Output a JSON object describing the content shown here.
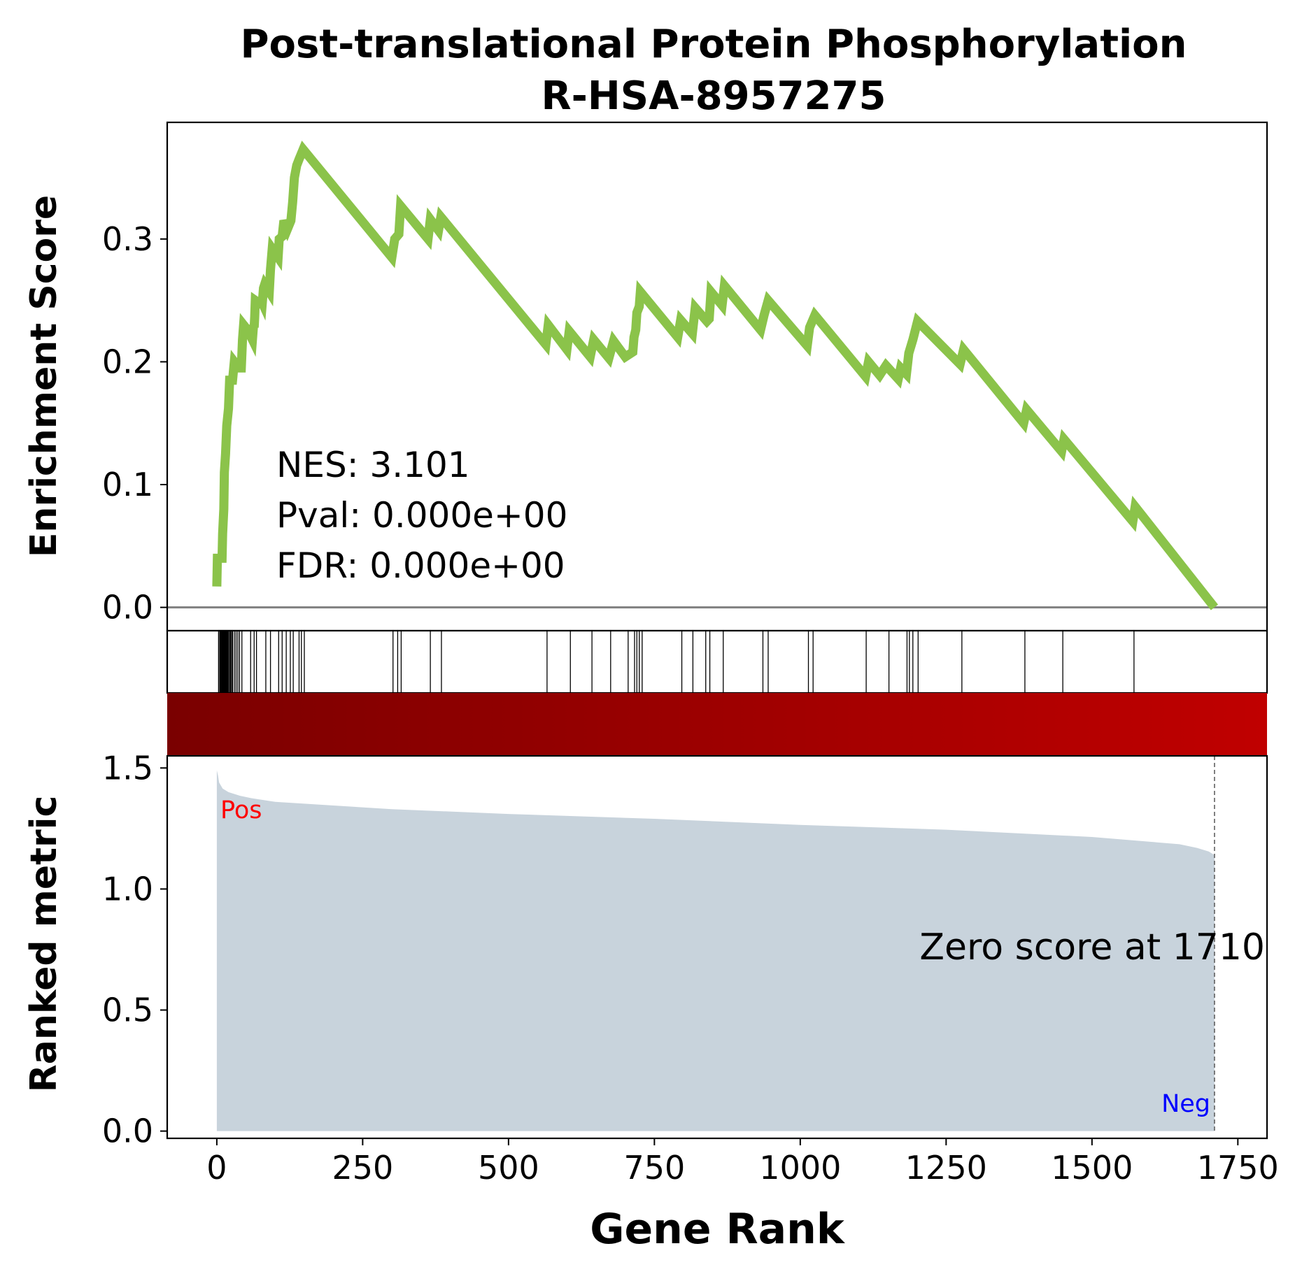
{
  "chart_data": {
    "type": "line",
    "title_line1": "Post-translational Protein Phosphorylation",
    "title_line2": "R-HSA-8957275",
    "xlabel": "Gene Rank",
    "xlim": [
      -85,
      1800
    ],
    "x_ticks": [
      0,
      250,
      500,
      750,
      1000,
      1250,
      1500,
      1750
    ],
    "x_tick_labels": [
      "0",
      "250",
      "500",
      "750",
      "1000",
      "1250",
      "1500",
      "1750"
    ],
    "es_panel": {
      "ylabel": "Enrichment Score",
      "ylim": [
        -0.019,
        0.395
      ],
      "y_ticks": [
        0.0,
        0.1,
        0.2,
        0.3
      ],
      "y_tick_labels": [
        "0.0",
        "0.1",
        "0.2",
        "0.3"
      ],
      "line_color": "#8bc34a",
      "baseline_color": "#808080",
      "stats": [
        "NES: 3.101",
        "Pval: 0.000e+00",
        "FDR: 0.000e+00"
      ],
      "points": [
        [
          0,
          0.017
        ],
        [
          1,
          0.04
        ],
        [
          9,
          0.04
        ],
        [
          10,
          0.06
        ],
        [
          12,
          0.08
        ],
        [
          13,
          0.11
        ],
        [
          15,
          0.125
        ],
        [
          17,
          0.148
        ],
        [
          20,
          0.162
        ],
        [
          22,
          0.185
        ],
        [
          27,
          0.185
        ],
        [
          30,
          0.2
        ],
        [
          38,
          0.195
        ],
        [
          42,
          0.195
        ],
        [
          44,
          0.218
        ],
        [
          46,
          0.23
        ],
        [
          56,
          0.224
        ],
        [
          59,
          0.22
        ],
        [
          61,
          0.218
        ],
        [
          63,
          0.23
        ],
        [
          64,
          0.228
        ],
        [
          65,
          0.237
        ],
        [
          66,
          0.25
        ],
        [
          72,
          0.248
        ],
        [
          76,
          0.25
        ],
        [
          78,
          0.248
        ],
        [
          80,
          0.26
        ],
        [
          82,
          0.263
        ],
        [
          90,
          0.257
        ],
        [
          92,
          0.275
        ],
        [
          95,
          0.292
        ],
        [
          105,
          0.285
        ],
        [
          107,
          0.3
        ],
        [
          112,
          0.302
        ],
        [
          115,
          0.315
        ],
        [
          121,
          0.308
        ],
        [
          127,
          0.315
        ],
        [
          130,
          0.33
        ],
        [
          133,
          0.35
        ],
        [
          137,
          0.36
        ],
        [
          141,
          0.365
        ],
        [
          148,
          0.373
        ],
        [
          300,
          0.285
        ],
        [
          305,
          0.3
        ],
        [
          312,
          0.304
        ],
        [
          315,
          0.327
        ],
        [
          362,
          0.3
        ],
        [
          366,
          0.316
        ],
        [
          380,
          0.307
        ],
        [
          384,
          0.318
        ],
        [
          564,
          0.214
        ],
        [
          568,
          0.23
        ],
        [
          600,
          0.21
        ],
        [
          604,
          0.225
        ],
        [
          640,
          0.204
        ],
        [
          646,
          0.218
        ],
        [
          672,
          0.203
        ],
        [
          680,
          0.217
        ],
        [
          700,
          0.204
        ],
        [
          713,
          0.208
        ],
        [
          715,
          0.22
        ],
        [
          718,
          0.226
        ],
        [
          720,
          0.24
        ],
        [
          724,
          0.245
        ],
        [
          726,
          0.257
        ],
        [
          790,
          0.22
        ],
        [
          795,
          0.234
        ],
        [
          815,
          0.223
        ],
        [
          820,
          0.244
        ],
        [
          840,
          0.233
        ],
        [
          844,
          0.235
        ],
        [
          847,
          0.257
        ],
        [
          866,
          0.246
        ],
        [
          870,
          0.262
        ],
        [
          932,
          0.226
        ],
        [
          938,
          0.238
        ],
        [
          945,
          0.25
        ],
        [
          1012,
          0.213
        ],
        [
          1016,
          0.228
        ],
        [
          1025,
          0.238
        ],
        [
          1112,
          0.188
        ],
        [
          1117,
          0.2
        ],
        [
          1136,
          0.189
        ],
        [
          1147,
          0.197
        ],
        [
          1168,
          0.186
        ],
        [
          1172,
          0.195
        ],
        [
          1182,
          0.19
        ],
        [
          1186,
          0.207
        ],
        [
          1193,
          0.218
        ],
        [
          1201,
          0.233
        ],
        [
          1274,
          0.198
        ],
        [
          1280,
          0.21
        ],
        [
          1383,
          0.15
        ],
        [
          1388,
          0.161
        ],
        [
          1448,
          0.127
        ],
        [
          1452,
          0.137
        ],
        [
          1570,
          0.07
        ],
        [
          1574,
          0.082
        ],
        [
          1710,
          0.0
        ]
      ]
    },
    "hit_positions": [
      3,
      5,
      6,
      7,
      8,
      9,
      10,
      11,
      12,
      13,
      14,
      15,
      16,
      17,
      18,
      19,
      20,
      22,
      23,
      24,
      26,
      27,
      30,
      33,
      36,
      39,
      43,
      58,
      64,
      68,
      84,
      92,
      106,
      112,
      119,
      126,
      131,
      141,
      145,
      150,
      302,
      310,
      316,
      366,
      385,
      566,
      606,
      643,
      675,
      705,
      716,
      720,
      724,
      729,
      797,
      816,
      838,
      845,
      868,
      936,
      945,
      1014,
      1022,
      1113,
      1152,
      1183,
      1187,
      1193,
      1202,
      1277,
      1385,
      1450,
      1572
    ],
    "ranked_panel": {
      "ylabel": "Ranked metric",
      "ylim": [
        -0.03,
        1.55
      ],
      "y_ticks": [
        0.0,
        0.5,
        1.0,
        1.5
      ],
      "y_tick_labels": [
        "0.0",
        "0.5",
        "1.0",
        "1.5"
      ],
      "fill_color": "#c8d3dc",
      "pos_label": "Pos",
      "pos_color": "#ff0000",
      "neg_label": "Neg",
      "neg_color": "#0000ff",
      "zero_score_text": "Zero score at 1710",
      "zero_rank": 1710,
      "metric_points": [
        [
          0,
          1.49
        ],
        [
          2,
          1.47
        ],
        [
          4,
          1.44
        ],
        [
          10,
          1.415
        ],
        [
          20,
          1.4
        ],
        [
          40,
          1.385
        ],
        [
          60,
          1.375
        ],
        [
          100,
          1.36
        ],
        [
          200,
          1.345
        ],
        [
          300,
          1.33
        ],
        [
          500,
          1.31
        ],
        [
          750,
          1.29
        ],
        [
          1000,
          1.265
        ],
        [
          1250,
          1.245
        ],
        [
          1500,
          1.215
        ],
        [
          1600,
          1.195
        ],
        [
          1650,
          1.185
        ],
        [
          1680,
          1.17
        ],
        [
          1700,
          1.155
        ],
        [
          1710,
          1.14
        ]
      ]
    },
    "colorbar_colors": [
      "#7a0000",
      "#c00000"
    ]
  }
}
